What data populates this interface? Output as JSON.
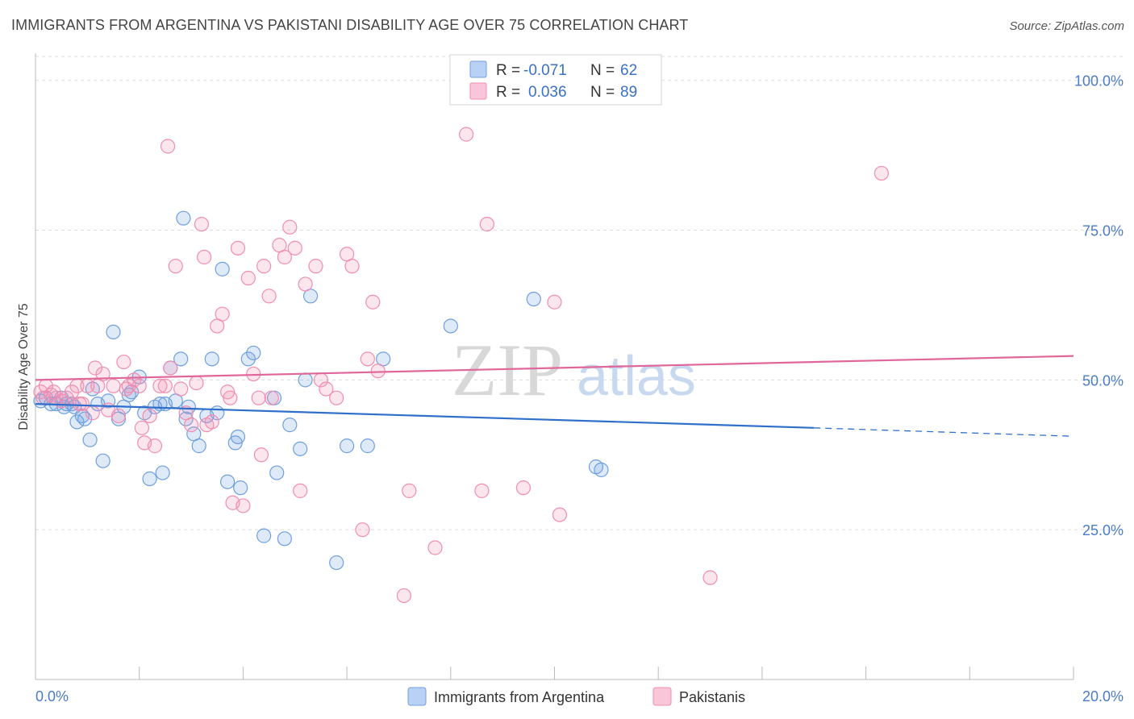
{
  "title": "IMMIGRANTS FROM ARGENTINA VS PAKISTANI DISABILITY AGE OVER 75 CORRELATION CHART",
  "source": "Source: ZipAtlas.com",
  "watermark": {
    "zip": "ZIP",
    "atlas": "atlas"
  },
  "legend": {
    "r_label": "R =",
    "n_label": "N =",
    "series": [
      {
        "name": "Immigrants from Argentina",
        "r": "-0.071",
        "n": "62",
        "color": "#6f9fe0"
      },
      {
        "name": "Pakistanis",
        "r": "0.036",
        "n": "89",
        "color": "#f08db0"
      }
    ]
  },
  "chart_data": {
    "type": "scatter",
    "title": "IMMIGRANTS FROM ARGENTINA VS PAKISTANI DISABILITY AGE OVER 75 CORRELATION CHART",
    "xlabel": "",
    "ylabel": "Disability Age Over 75",
    "xlim": [
      0,
      20
    ],
    "ylim": [
      0,
      104
    ],
    "x_tick_labels": [
      "0.0%",
      "20.0%"
    ],
    "y_ticks": [
      25,
      50,
      75,
      100
    ],
    "y_tick_labels": [
      "25.0%",
      "50.0%",
      "75.0%",
      "100.0%"
    ],
    "grid": true,
    "series": [
      {
        "name": "Immigrants from Argentina",
        "color": "#6f9fe0",
        "trend": {
          "x": [
            0,
            15
          ],
          "y": [
            46.0,
            42.0
          ],
          "dashed_to": {
            "x": 20,
            "y": 40.6
          }
        },
        "points": [
          [
            0.1,
            46.5
          ],
          [
            0.2,
            47
          ],
          [
            0.3,
            46
          ],
          [
            0.4,
            46
          ],
          [
            0.5,
            47
          ],
          [
            0.55,
            45.5
          ],
          [
            0.6,
            46
          ],
          [
            0.7,
            46
          ],
          [
            0.75,
            45.5
          ],
          [
            0.8,
            43
          ],
          [
            0.9,
            44
          ],
          [
            0.95,
            43.5
          ],
          [
            1.05,
            40
          ],
          [
            1.1,
            48.5
          ],
          [
            1.2,
            46
          ],
          [
            1.3,
            36.5
          ],
          [
            1.4,
            46.5
          ],
          [
            1.5,
            58
          ],
          [
            1.6,
            43.5
          ],
          [
            1.7,
            45.5
          ],
          [
            1.8,
            47.5
          ],
          [
            1.85,
            48
          ],
          [
            2.0,
            50.5
          ],
          [
            2.1,
            44.5
          ],
          [
            2.2,
            33.5
          ],
          [
            2.3,
            45.5
          ],
          [
            2.4,
            46
          ],
          [
            2.45,
            34.5
          ],
          [
            2.5,
            46
          ],
          [
            2.6,
            52
          ],
          [
            2.7,
            46.5
          ],
          [
            2.8,
            53.5
          ],
          [
            2.85,
            77
          ],
          [
            2.9,
            43.5
          ],
          [
            2.95,
            45.5
          ],
          [
            3.05,
            41
          ],
          [
            3.15,
            39
          ],
          [
            3.3,
            44
          ],
          [
            3.4,
            53.5
          ],
          [
            3.5,
            44.5
          ],
          [
            3.6,
            68.5
          ],
          [
            3.7,
            33
          ],
          [
            3.85,
            39.5
          ],
          [
            3.9,
            40.5
          ],
          [
            3.95,
            32
          ],
          [
            4.1,
            53.5
          ],
          [
            4.2,
            54.5
          ],
          [
            4.4,
            24
          ],
          [
            4.6,
            47
          ],
          [
            4.65,
            34.5
          ],
          [
            4.8,
            23.5
          ],
          [
            4.9,
            42.5
          ],
          [
            5.1,
            38.5
          ],
          [
            5.2,
            50
          ],
          [
            5.3,
            64
          ],
          [
            5.8,
            19.5
          ],
          [
            6.0,
            39
          ],
          [
            6.4,
            39
          ],
          [
            6.7,
            53.5
          ],
          [
            8.0,
            59
          ],
          [
            9.6,
            63.5
          ],
          [
            10.8,
            35.5
          ],
          [
            10.9,
            35
          ]
        ]
      },
      {
        "name": "Pakistanis",
        "color": "#f08db0",
        "trend": {
          "x": [
            0,
            20
          ],
          "y": [
            50.0,
            54.0
          ]
        },
        "points": [
          [
            0.1,
            48
          ],
          [
            0.15,
            47
          ],
          [
            0.2,
            49
          ],
          [
            0.3,
            47.5
          ],
          [
            0.35,
            48
          ],
          [
            0.4,
            47
          ],
          [
            0.5,
            46.5
          ],
          [
            0.6,
            47
          ],
          [
            0.7,
            48
          ],
          [
            0.8,
            49
          ],
          [
            0.85,
            46
          ],
          [
            0.9,
            46
          ],
          [
            1.0,
            49
          ],
          [
            1.1,
            44.5
          ],
          [
            1.15,
            52
          ],
          [
            1.2,
            49
          ],
          [
            1.3,
            51
          ],
          [
            1.4,
            45
          ],
          [
            1.5,
            49
          ],
          [
            1.6,
            44
          ],
          [
            1.7,
            53
          ],
          [
            1.75,
            48.5
          ],
          [
            1.8,
            49
          ],
          [
            1.9,
            50
          ],
          [
            2.0,
            49
          ],
          [
            2.05,
            42
          ],
          [
            2.1,
            39.5
          ],
          [
            2.2,
            44
          ],
          [
            2.3,
            39
          ],
          [
            2.4,
            49
          ],
          [
            2.5,
            49
          ],
          [
            2.55,
            89
          ],
          [
            2.6,
            52
          ],
          [
            2.7,
            69
          ],
          [
            2.8,
            48.5
          ],
          [
            2.9,
            44.5
          ],
          [
            3.0,
            42.5
          ],
          [
            3.1,
            49.5
          ],
          [
            3.2,
            76
          ],
          [
            3.25,
            70.5
          ],
          [
            3.3,
            42.5
          ],
          [
            3.4,
            43
          ],
          [
            3.5,
            59
          ],
          [
            3.6,
            61
          ],
          [
            3.7,
            48
          ],
          [
            3.75,
            47
          ],
          [
            3.8,
            29.5
          ],
          [
            3.9,
            72
          ],
          [
            4.0,
            29
          ],
          [
            4.1,
            67
          ],
          [
            4.2,
            51
          ],
          [
            4.3,
            47
          ],
          [
            4.35,
            37.5
          ],
          [
            4.4,
            69
          ],
          [
            4.5,
            64
          ],
          [
            4.55,
            47
          ],
          [
            4.7,
            72.5
          ],
          [
            4.8,
            70.5
          ],
          [
            4.9,
            75.5
          ],
          [
            5.0,
            72
          ],
          [
            5.1,
            31.5
          ],
          [
            5.2,
            66
          ],
          [
            5.4,
            69
          ],
          [
            5.5,
            50
          ],
          [
            5.6,
            48.5
          ],
          [
            5.8,
            47
          ],
          [
            6.0,
            71
          ],
          [
            6.1,
            69
          ],
          [
            6.3,
            25
          ],
          [
            6.4,
            53.5
          ],
          [
            6.5,
            63
          ],
          [
            6.6,
            51.5
          ],
          [
            7.1,
            14
          ],
          [
            7.2,
            31.5
          ],
          [
            7.7,
            22
          ],
          [
            8.3,
            91
          ],
          [
            8.6,
            31.5
          ],
          [
            8.7,
            76
          ],
          [
            9.4,
            32
          ],
          [
            10.0,
            63
          ],
          [
            10.1,
            27.5
          ],
          [
            13.0,
            17
          ],
          [
            16.3,
            84.5
          ]
        ]
      }
    ]
  }
}
